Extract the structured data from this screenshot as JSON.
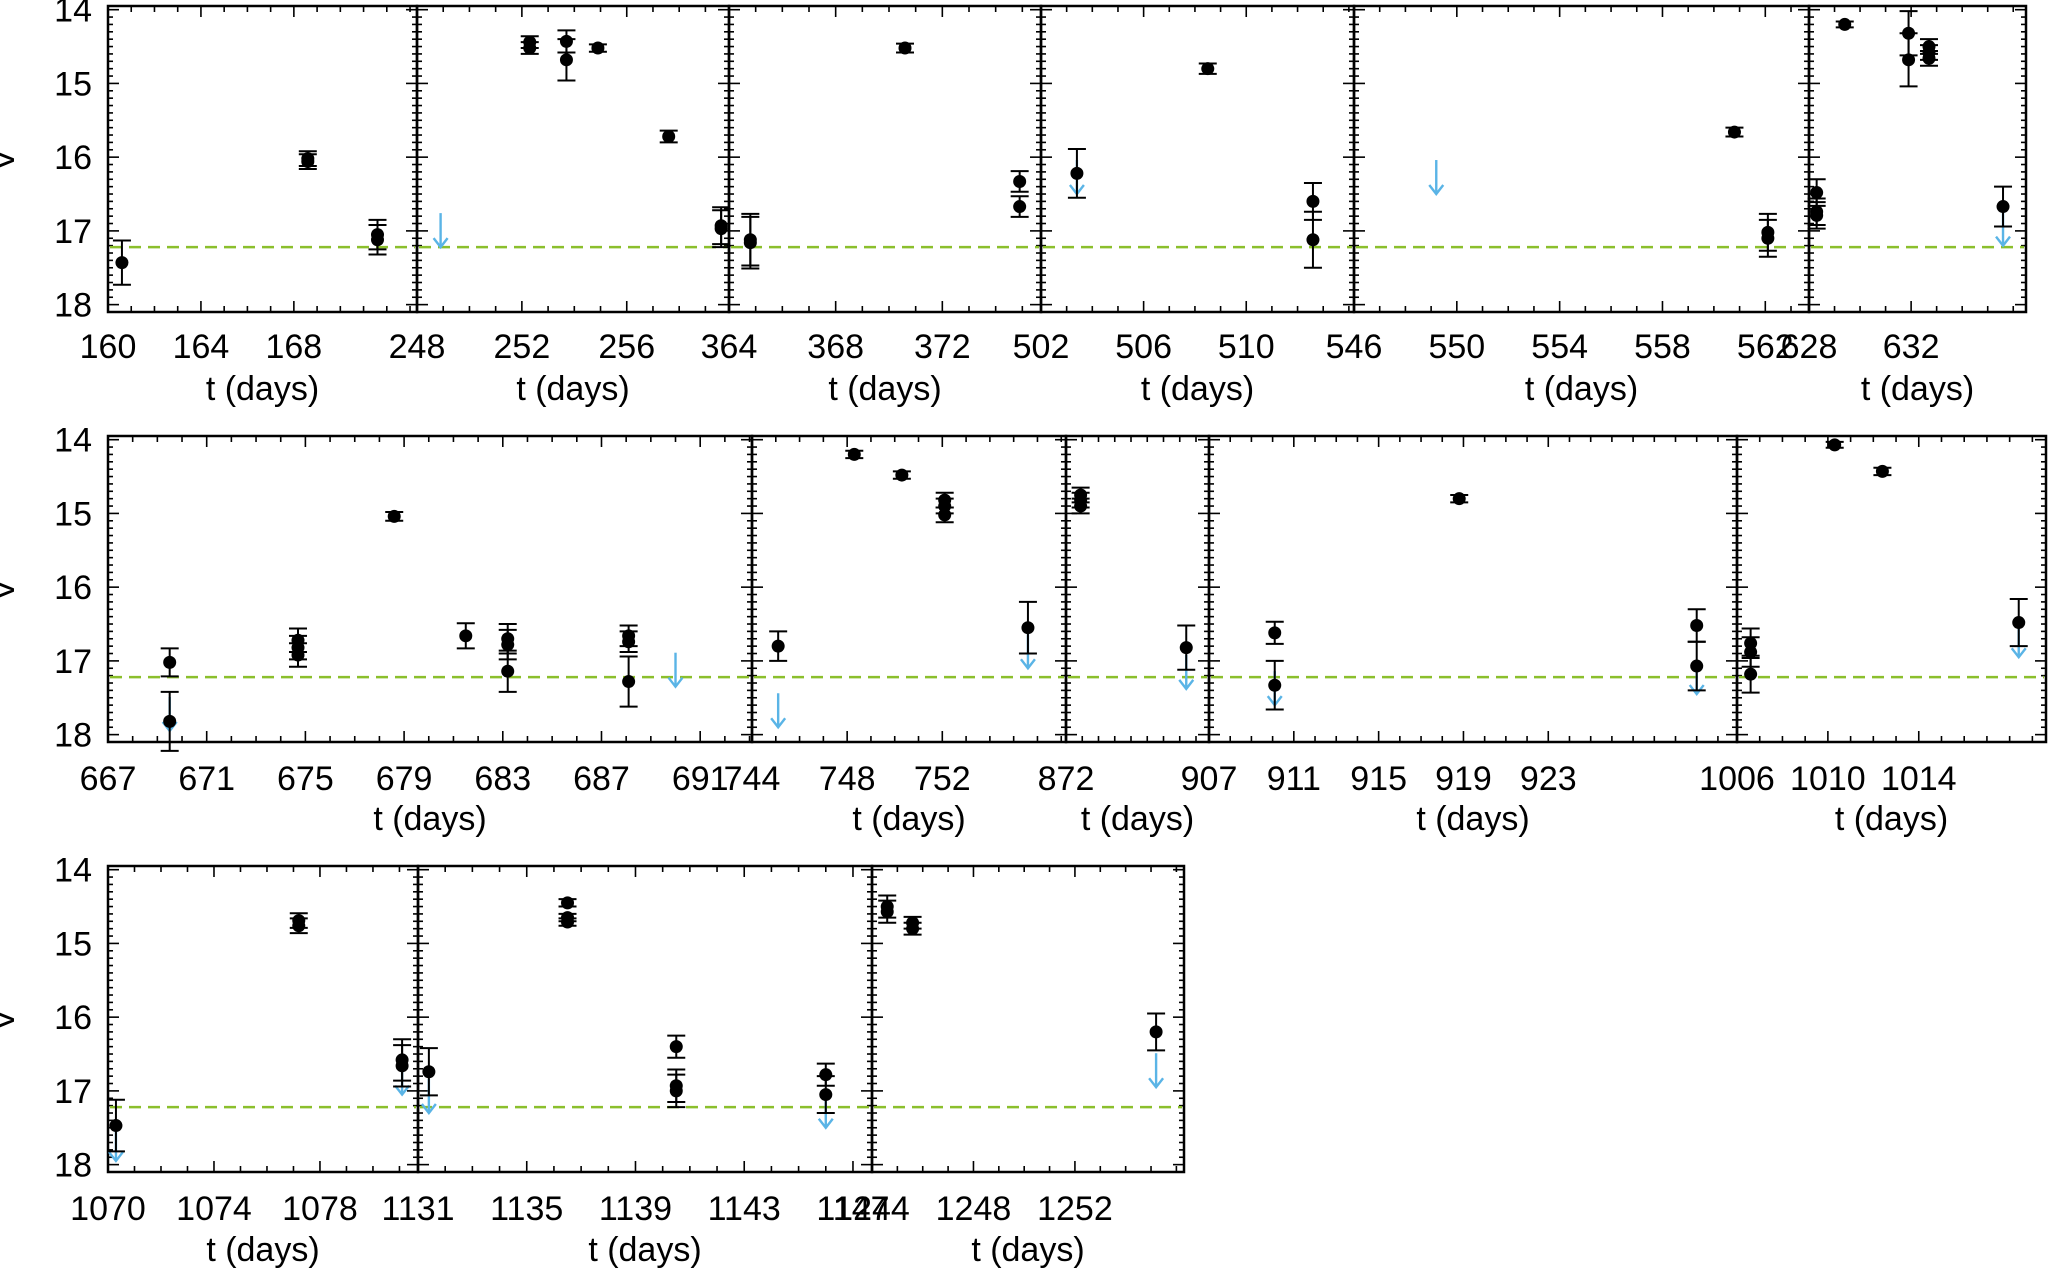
{
  "figure": {
    "ylabel": "V",
    "xlabel": "t (days)",
    "colors": {
      "marker": "#000000",
      "threshold_line": "#8bbf2c",
      "upper_limit": "#5ab4e6",
      "frame": "#000000"
    },
    "threshold": 17.22,
    "ylim": [
      18.1,
      13.95
    ],
    "yticks": [
      14,
      15,
      16,
      17,
      18
    ]
  },
  "chart_data": [
    {
      "type": "scatter",
      "row": 1,
      "panel": 1,
      "xlim": [
        160,
        173.3
      ],
      "xticks": [
        160,
        164,
        168
      ],
      "xlabel": "t (days)",
      "ylabel": "V",
      "points": [
        {
          "x": 160.6,
          "y": 17.43,
          "err": 0.3
        },
        {
          "x": 168.6,
          "y": 16.02,
          "err": 0.1
        },
        {
          "x": 168.6,
          "y": 16.06,
          "err": 0.1
        },
        {
          "x": 171.6,
          "y": 17.05,
          "err": 0.2
        },
        {
          "x": 171.6,
          "y": 17.12,
          "err": 0.2
        }
      ],
      "upper_limits": []
    },
    {
      "type": "scatter",
      "row": 1,
      "panel": 2,
      "xlim": [
        248,
        259.9
      ],
      "xticks": [
        248,
        252,
        256
      ],
      "xlabel": "t (days)",
      "ylabel": "V",
      "points": [
        {
          "x": 252.3,
          "y": 14.44,
          "err": 0.08
        },
        {
          "x": 252.3,
          "y": 14.52,
          "err": 0.08
        },
        {
          "x": 253.7,
          "y": 14.43,
          "err": 0.15
        },
        {
          "x": 253.7,
          "y": 14.68,
          "err": 0.28
        },
        {
          "x": 254.9,
          "y": 14.52,
          "err": 0.05
        },
        {
          "x": 257.6,
          "y": 15.72,
          "err": 0.08
        },
        {
          "x": 259.6,
          "y": 16.93,
          "err": 0.25
        },
        {
          "x": 259.6,
          "y": 16.97,
          "err": 0.25
        }
      ],
      "upper_limits": [
        {
          "x": 248.9,
          "y": 17.22
        }
      ]
    },
    {
      "type": "scatter",
      "row": 1,
      "panel": 3,
      "xlim": [
        364,
        375.7
      ],
      "xticks": [
        364,
        368,
        372
      ],
      "xlabel": "t (days)",
      "ylabel": "V",
      "points": [
        {
          "x": 364.8,
          "y": 17.12,
          "err": 0.35
        },
        {
          "x": 364.8,
          "y": 17.16,
          "err": 0.35
        },
        {
          "x": 370.6,
          "y": 14.52,
          "err": 0.06
        },
        {
          "x": 374.9,
          "y": 16.33,
          "err": 0.14
        },
        {
          "x": 374.9,
          "y": 16.67,
          "err": 0.14
        }
      ],
      "upper_limits": []
    },
    {
      "type": "scatter",
      "row": 1,
      "panel": 4,
      "xlim": [
        502,
        514.2
      ],
      "xticks": [
        502,
        506,
        510
      ],
      "xlabel": "t (days)",
      "ylabel": "V",
      "points": [
        {
          "x": 503.4,
          "y": 16.22,
          "err": 0.33
        },
        {
          "x": 508.5,
          "y": 14.8,
          "err": 0.07
        },
        {
          "x": 512.6,
          "y": 16.6,
          "err": 0.25
        },
        {
          "x": 512.6,
          "y": 17.12,
          "err": 0.38
        }
      ],
      "upper_limits": [
        {
          "x": 503.4,
          "y": 16.5
        }
      ]
    },
    {
      "type": "scatter",
      "row": 1,
      "panel": 5,
      "xlim": [
        546,
        563.7
      ],
      "xticks": [
        546,
        550,
        554,
        558,
        562
      ],
      "xlabel": "t (days)",
      "ylabel": "V",
      "points": [
        {
          "x": 560.8,
          "y": 15.66,
          "err": 0.06
        },
        {
          "x": 562.1,
          "y": 17.02,
          "err": 0.25
        },
        {
          "x": 562.1,
          "y": 17.1,
          "err": 0.25
        }
      ],
      "upper_limits": [
        {
          "x": 549.2,
          "y": 16.5
        }
      ]
    },
    {
      "type": "scatter",
      "row": 1,
      "panel": 6,
      "xlim": [
        628,
        636.5
      ],
      "xticks": [
        628,
        632
      ],
      "xlabel": "t (days)",
      "ylabel": "V",
      "points": [
        {
          "x": 628.3,
          "y": 16.48,
          "err": 0.18
        },
        {
          "x": 628.3,
          "y": 16.74,
          "err": 0.18
        },
        {
          "x": 628.3,
          "y": 16.79,
          "err": 0.18
        },
        {
          "x": 629.4,
          "y": 14.2,
          "err": 0.04
        },
        {
          "x": 631.9,
          "y": 14.32,
          "err": 0.3
        },
        {
          "x": 631.9,
          "y": 14.68,
          "err": 0.36
        },
        {
          "x": 632.7,
          "y": 14.5,
          "err": 0.1
        },
        {
          "x": 632.7,
          "y": 14.58,
          "err": 0.1
        },
        {
          "x": 632.7,
          "y": 14.66,
          "err": 0.1
        },
        {
          "x": 635.6,
          "y": 16.67,
          "err": 0.27
        }
      ],
      "upper_limits": [
        {
          "x": 635.6,
          "y": 17.2
        }
      ]
    },
    {
      "type": "scatter",
      "row": 2,
      "panel": 1,
      "xlim": [
        667,
        693.1
      ],
      "xticks": [
        667,
        671,
        675,
        679,
        683,
        687,
        691
      ],
      "xlabel": "t (days)",
      "ylabel": "V",
      "points": [
        {
          "x": 669.5,
          "y": 17.02,
          "err": 0.19
        },
        {
          "x": 669.5,
          "y": 17.82,
          "err": 0.4
        },
        {
          "x": 674.7,
          "y": 16.72,
          "err": 0.16
        },
        {
          "x": 674.7,
          "y": 16.82,
          "err": 0.16
        },
        {
          "x": 674.7,
          "y": 16.92,
          "err": 0.16
        },
        {
          "x": 678.6,
          "y": 15.04,
          "err": 0.06
        },
        {
          "x": 681.5,
          "y": 16.66,
          "err": 0.17
        },
        {
          "x": 683.2,
          "y": 16.7,
          "err": 0.2
        },
        {
          "x": 683.2,
          "y": 16.78,
          "err": 0.2
        },
        {
          "x": 683.2,
          "y": 17.14,
          "err": 0.28
        },
        {
          "x": 688.1,
          "y": 16.66,
          "err": 0.14
        },
        {
          "x": 688.1,
          "y": 16.74,
          "err": 0.14
        },
        {
          "x": 688.1,
          "y": 17.28,
          "err": 0.34
        }
      ],
      "upper_limits": [
        {
          "x": 669.5,
          "y": 17.95
        },
        {
          "x": 690.0,
          "y": 17.35
        }
      ]
    },
    {
      "type": "scatter",
      "row": 2,
      "panel": 2,
      "xlim": [
        744,
        757.2
      ],
      "xticks": [
        744,
        748,
        752
      ],
      "xlabel": "t (days)",
      "ylabel": "V",
      "points": [
        {
          "x": 745.1,
          "y": 16.8,
          "err": 0.2
        },
        {
          "x": 748.3,
          "y": 14.2,
          "err": 0.05
        },
        {
          "x": 750.3,
          "y": 14.48,
          "err": 0.05
        },
        {
          "x": 752.1,
          "y": 14.82,
          "err": 0.1
        },
        {
          "x": 752.1,
          "y": 14.9,
          "err": 0.1
        },
        {
          "x": 752.1,
          "y": 15.02,
          "err": 0.1
        },
        {
          "x": 755.6,
          "y": 16.55,
          "err": 0.35
        }
      ],
      "upper_limits": [
        {
          "x": 745.1,
          "y": 17.9
        },
        {
          "x": 755.6,
          "y": 17.1
        }
      ]
    },
    {
      "type": "scatter",
      "row": 2,
      "panel": 3,
      "xlim": [
        872,
        880.8
      ],
      "xticks": [
        872
      ],
      "xlabel": "t (days)",
      "ylabel": "V",
      "points": [
        {
          "x": 872.9,
          "y": 14.75,
          "err": 0.1
        },
        {
          "x": 872.9,
          "y": 14.82,
          "err": 0.1
        },
        {
          "x": 872.9,
          "y": 14.9,
          "err": 0.1
        },
        {
          "x": 879.4,
          "y": 16.82,
          "err": 0.3
        }
      ],
      "upper_limits": [
        {
          "x": 879.4,
          "y": 17.38
        }
      ]
    },
    {
      "type": "scatter",
      "row": 2,
      "panel": 4,
      "xlim": [
        907,
        931.9
      ],
      "xticks": [
        907,
        911,
        915,
        919,
        923
      ],
      "xlabel": "t (days)",
      "ylabel": "V",
      "points": [
        {
          "x": 910.1,
          "y": 16.62,
          "err": 0.15
        },
        {
          "x": 910.1,
          "y": 17.33,
          "err": 0.33
        },
        {
          "x": 918.8,
          "y": 14.8,
          "err": 0.05
        },
        {
          "x": 930.0,
          "y": 16.52,
          "err": 0.22
        },
        {
          "x": 930.0,
          "y": 17.07,
          "err": 0.33
        }
      ],
      "upper_limits": [
        {
          "x": 910.1,
          "y": 17.6
        },
        {
          "x": 930.0,
          "y": 17.45
        }
      ]
    },
    {
      "type": "scatter",
      "row": 2,
      "panel": 5,
      "xlim": [
        1006,
        1019.6
      ],
      "xticks": [
        1006,
        1010,
        1014
      ],
      "xlabel": "t (days)",
      "ylabel": "V",
      "points": [
        {
          "x": 1006.6,
          "y": 16.76,
          "err": 0.2
        },
        {
          "x": 1006.6,
          "y": 16.88,
          "err": 0.2
        },
        {
          "x": 1006.6,
          "y": 17.18,
          "err": 0.25
        },
        {
          "x": 1010.3,
          "y": 14.07,
          "err": 0.04
        },
        {
          "x": 1012.4,
          "y": 14.43,
          "err": 0.05
        },
        {
          "x": 1018.4,
          "y": 16.48,
          "err": 0.32
        }
      ],
      "upper_limits": [
        {
          "x": 1018.4,
          "y": 16.95
        }
      ]
    },
    {
      "type": "scatter",
      "row": 3,
      "panel": 1,
      "xlim": [
        1070,
        1081.7
      ],
      "xticks": [
        1070,
        1074,
        1078
      ],
      "xlabel": "t (days)",
      "ylabel": "V",
      "points": [
        {
          "x": 1070.3,
          "y": 17.47,
          "err": 0.35
        },
        {
          "x": 1077.2,
          "y": 14.69,
          "err": 0.1
        },
        {
          "x": 1077.2,
          "y": 14.76,
          "err": 0.1
        },
        {
          "x": 1081.1,
          "y": 16.58,
          "err": 0.28
        },
        {
          "x": 1081.1,
          "y": 16.66,
          "err": 0.28
        }
      ],
      "upper_limits": [
        {
          "x": 1070.3,
          "y": 17.95
        },
        {
          "x": 1081.1,
          "y": 17.05
        }
      ]
    },
    {
      "type": "scatter",
      "row": 3,
      "panel": 2,
      "xlim": [
        1131,
        1147.7
      ],
      "xticks": [
        1131,
        1135,
        1139,
        1143,
        1147
      ],
      "xlabel": "t (days)",
      "ylabel": "V",
      "points": [
        {
          "x": 1131.4,
          "y": 16.74,
          "err": 0.32
        },
        {
          "x": 1136.5,
          "y": 14.45,
          "err": 0.05
        },
        {
          "x": 1136.5,
          "y": 14.65,
          "err": 0.05
        },
        {
          "x": 1136.5,
          "y": 14.71,
          "err": 0.05
        },
        {
          "x": 1140.5,
          "y": 16.4,
          "err": 0.15
        },
        {
          "x": 1140.5,
          "y": 16.93,
          "err": 0.22
        },
        {
          "x": 1140.5,
          "y": 17.0,
          "err": 0.22
        },
        {
          "x": 1146.0,
          "y": 16.78,
          "err": 0.15
        },
        {
          "x": 1146.0,
          "y": 17.05,
          "err": 0.25
        }
      ],
      "upper_limits": [
        {
          "x": 1131.4,
          "y": 17.3
        },
        {
          "x": 1146.0,
          "y": 17.5
        }
      ]
    },
    {
      "type": "scatter",
      "row": 3,
      "panel": 3,
      "xlim": [
        1244,
        1256.3
      ],
      "xticks": [
        1244,
        1248,
        1252
      ],
      "xlabel": "t (days)",
      "ylabel": "V",
      "points": [
        {
          "x": 1244.6,
          "y": 14.5,
          "err": 0.15
        },
        {
          "x": 1244.6,
          "y": 14.57,
          "err": 0.15
        },
        {
          "x": 1245.6,
          "y": 14.72,
          "err": 0.08
        },
        {
          "x": 1245.6,
          "y": 14.8,
          "err": 0.08
        },
        {
          "x": 1255.2,
          "y": 16.2,
          "err": 0.25
        }
      ],
      "upper_limits": [
        {
          "x": 1255.2,
          "y": 16.95
        }
      ]
    }
  ]
}
